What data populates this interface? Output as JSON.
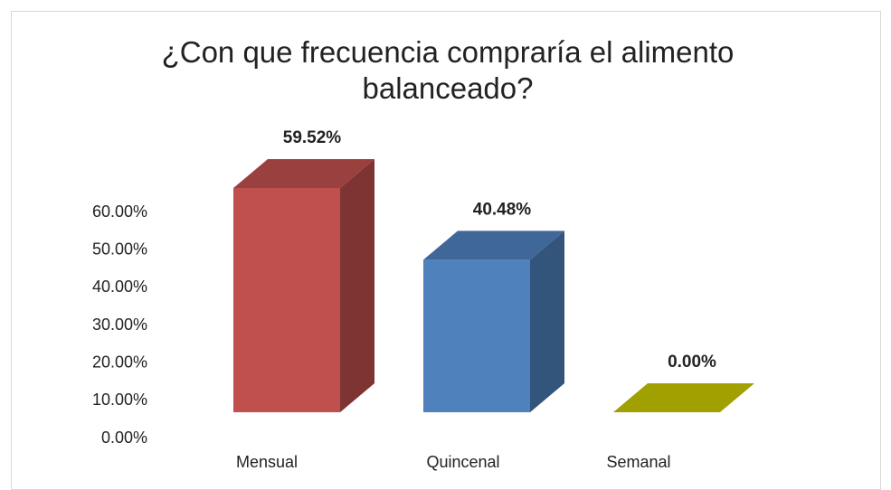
{
  "chart_data": {
    "type": "bar3d",
    "title": "¿Con que frecuencia compraría el alimento balanceado?",
    "categories": [
      "Mensual",
      "Quincenal",
      "Semanal"
    ],
    "values": [
      59.52,
      40.48,
      0
    ],
    "value_labels": [
      "59.52%",
      "40.48%",
      "0.00%"
    ],
    "colors": [
      "#c0504d",
      "#4f81bd",
      "#c8c800"
    ],
    "ylim": [
      0,
      60
    ],
    "yticks": [
      {
        "value": 0,
        "label": "0.00%"
      },
      {
        "value": 10,
        "label": "10.00%"
      },
      {
        "value": 20,
        "label": "20.00%"
      },
      {
        "value": 30,
        "label": "30.00%"
      },
      {
        "value": 40,
        "label": "40.00%"
      },
      {
        "value": 50,
        "label": "50.00%"
      },
      {
        "value": 60,
        "label": "60.00%"
      }
    ],
    "grid": false
  }
}
